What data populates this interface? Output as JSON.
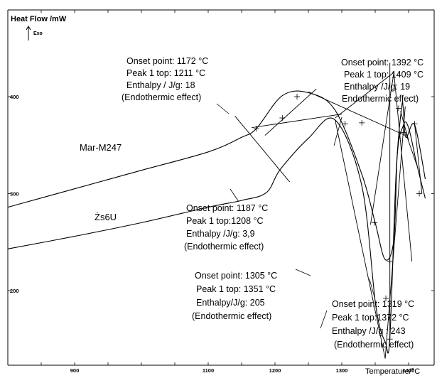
{
  "chart_data": {
    "type": "line",
    "ylabel": "Heat Flow /mW",
    "exo_label": "Exo",
    "xlabel": "Temperature/°C",
    "x_ticks": [
      "900",
      "1100",
      "1200",
      "1300",
      "1400"
    ],
    "y_ticks": [
      "400",
      "300",
      "200"
    ],
    "series": [
      {
        "name": "Mar-M247",
        "x": [
          800,
          900,
          1000,
          1100,
          1150,
          1172,
          1211,
          1250,
          1290,
          1330,
          1350,
          1365,
          1378,
          1383,
          1390,
          1392,
          1396,
          1409,
          1425
        ],
        "y": [
          286,
          305,
          324,
          343,
          358,
          367,
          401,
          404,
          386,
          320,
          270,
          232,
          253,
          340,
          391,
          388,
          358,
          371,
          315
        ]
      },
      {
        "name": "Żs6U",
        "x": [
          800,
          900,
          1000,
          1100,
          1150,
          1187,
          1208,
          1250,
          1290,
          1330,
          1351,
          1365,
          1372,
          1382,
          1392,
          1400,
          1412,
          1425
        ],
        "y": [
          243,
          256,
          270,
          286,
          293,
          301,
          325,
          357,
          376,
          308,
          184,
          147,
          152,
          330,
          370,
          368,
          331,
          295
        ]
      }
    ],
    "annotations": [
      {
        "lines": [
          "Onset point: 1172 °C",
          "Peak 1 top: 1211 °C",
          "Enthalpy / J/g: 18",
          "(Endothermic effect)"
        ]
      },
      {
        "lines": [
          "Onset point: 1392 °C",
          "Peak 1 top: 1409 °C",
          "Enthalpy /J/g: 19",
          "Endothermic effect)"
        ]
      },
      {
        "lines": [
          "Onset point: 1187 °C",
          "Peak 1 top:1208 °C",
          "Enthalpy /J/g: 3,9",
          "(Endothermic effect)"
        ]
      },
      {
        "lines": [
          "Onset point: 1305 °C",
          "Peak 1 top: 1351 °C",
          "Enthalpy/J/g: 205",
          "(Endothermic effect)"
        ]
      },
      {
        "lines": [
          "Onset point: 1319 °C",
          "Peak 1 top:1372 °C",
          "Enthalpy /J/g : 243",
          "(Endothermic effect)"
        ]
      }
    ]
  }
}
